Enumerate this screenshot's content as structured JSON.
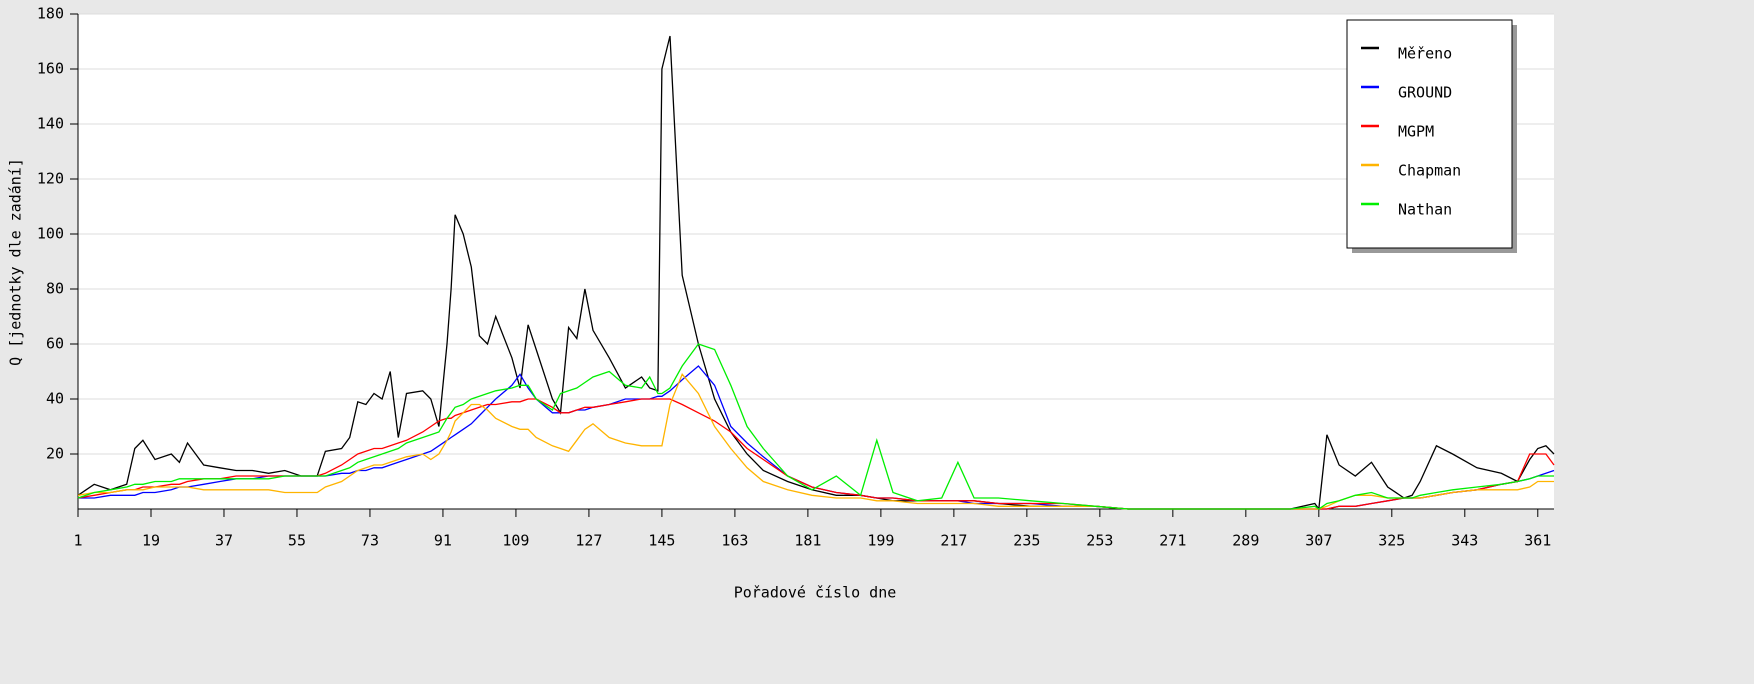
{
  "chart_data": {
    "type": "line",
    "x_label": "Pořadové číslo dne",
    "y_label": "Q [jednotky dle zadání]",
    "xlim": [
      1,
      365
    ],
    "xticks": [
      1,
      19,
      37,
      55,
      73,
      91,
      109,
      127,
      145,
      163,
      181,
      199,
      217,
      235,
      253,
      271,
      289,
      307,
      325,
      343,
      361
    ],
    "ylim": [
      0,
      180
    ],
    "yticks": [
      20,
      40,
      60,
      80,
      100,
      120,
      140,
      160,
      180
    ],
    "grid": true,
    "legend": "upper right",
    "x": [
      1,
      5,
      9,
      13,
      15,
      17,
      20,
      24,
      26,
      28,
      32,
      36,
      40,
      44,
      48,
      52,
      56,
      60,
      62,
      66,
      68,
      70,
      72,
      74,
      76,
      78,
      80,
      82,
      86,
      88,
      90,
      92,
      93,
      94,
      96,
      98,
      100,
      102,
      104,
      108,
      110,
      112,
      114,
      118,
      120,
      122,
      124,
      126,
      128,
      132,
      136,
      140,
      142,
      144,
      145,
      147,
      150,
      154,
      158,
      162,
      166,
      170,
      176,
      182,
      188,
      194,
      198,
      202,
      208,
      214,
      218,
      222,
      228,
      236,
      244,
      252,
      260,
      266,
      272,
      280,
      290,
      300,
      306,
      307,
      309,
      312,
      316,
      320,
      324,
      328,
      330,
      332,
      336,
      340,
      346,
      352,
      356,
      359,
      361,
      363,
      365
    ],
    "series": [
      {
        "name": "Měřeno",
        "color": "#000000",
        "values": [
          5,
          9,
          7,
          9,
          22,
          25,
          18,
          20,
          17,
          24,
          16,
          15,
          14,
          14,
          13,
          14,
          12,
          12,
          21,
          22,
          26,
          39,
          38,
          42,
          40,
          50,
          26,
          42,
          43,
          40,
          30,
          60,
          80,
          107,
          100,
          88,
          63,
          60,
          70,
          55,
          44,
          67,
          58,
          40,
          35,
          66,
          62,
          80,
          65,
          55,
          44,
          48,
          44,
          43,
          160,
          172,
          85,
          60,
          40,
          28,
          20,
          14,
          10,
          7,
          5,
          5,
          4,
          3,
          3,
          3,
          3,
          3,
          2,
          1,
          1,
          1,
          0,
          0,
          0,
          0,
          0,
          0,
          2,
          0,
          27,
          16,
          12,
          17,
          8,
          4,
          5,
          10,
          23,
          20,
          15,
          13,
          10,
          18,
          22,
          23,
          20
        ]
      },
      {
        "name": "GROUND",
        "color": "#0000ff",
        "values": [
          4,
          4,
          5,
          5,
          5,
          6,
          6,
          7,
          8,
          8,
          9,
          10,
          11,
          11,
          12,
          12,
          12,
          12,
          12,
          13,
          13,
          14,
          14,
          15,
          15,
          16,
          17,
          18,
          20,
          21,
          23,
          25,
          26,
          27,
          29,
          31,
          34,
          37,
          40,
          45,
          49,
          44,
          40,
          35,
          35,
          35,
          36,
          36,
          37,
          38,
          40,
          40,
          40,
          41,
          41,
          43,
          47,
          52,
          45,
          30,
          24,
          19,
          12,
          8,
          6,
          5,
          4,
          4,
          3,
          3,
          3,
          2,
          2,
          2,
          1,
          1,
          0,
          0,
          0,
          0,
          0,
          0,
          0,
          0,
          0,
          1,
          1,
          2,
          3,
          4,
          4,
          4,
          5,
          6,
          7,
          9,
          10,
          11,
          12,
          13,
          14
        ]
      },
      {
        "name": "MGPM",
        "color": "#ff0000",
        "values": [
          4,
          5,
          6,
          7,
          7,
          8,
          8,
          9,
          9,
          10,
          11,
          11,
          12,
          12,
          12,
          12,
          12,
          12,
          13,
          16,
          18,
          20,
          21,
          22,
          22,
          23,
          24,
          25,
          28,
          30,
          32,
          33,
          33,
          34,
          35,
          36,
          37,
          38,
          38,
          39,
          39,
          40,
          40,
          37,
          35,
          35,
          36,
          37,
          37,
          38,
          39,
          40,
          40,
          40,
          40,
          40,
          38,
          35,
          32,
          28,
          22,
          18,
          12,
          8,
          6,
          5,
          4,
          4,
          3,
          3,
          3,
          3,
          2,
          2,
          2,
          1,
          0,
          0,
          0,
          0,
          0,
          0,
          0,
          0,
          0,
          1,
          1,
          2,
          3,
          4,
          4,
          4,
          5,
          6,
          7,
          9,
          10,
          20,
          20,
          20,
          16
        ]
      },
      {
        "name": "Chapman",
        "color": "#ffb400",
        "values": [
          5,
          6,
          6,
          7,
          7,
          7,
          8,
          8,
          8,
          8,
          7,
          7,
          7,
          7,
          7,
          6,
          6,
          6,
          8,
          10,
          12,
          14,
          15,
          16,
          16,
          17,
          18,
          19,
          20,
          18,
          20,
          25,
          28,
          32,
          35,
          38,
          38,
          36,
          33,
          30,
          29,
          29,
          26,
          23,
          22,
          21,
          25,
          29,
          31,
          26,
          24,
          23,
          23,
          23,
          23,
          38,
          49,
          42,
          30,
          22,
          15,
          10,
          7,
          5,
          4,
          4,
          3,
          3,
          2,
          2,
          2,
          2,
          1,
          1,
          1,
          1,
          0,
          0,
          0,
          0,
          0,
          0,
          0,
          0,
          1,
          3,
          5,
          5,
          4,
          4,
          4,
          4,
          5,
          6,
          7,
          7,
          7,
          8,
          10,
          10,
          10
        ]
      },
      {
        "name": "Nathan",
        "color": "#00ee00",
        "values": [
          4,
          6,
          7,
          8,
          9,
          9,
          10,
          10,
          11,
          11,
          11,
          11,
          11,
          11,
          11,
          12,
          12,
          12,
          12,
          14,
          15,
          17,
          18,
          19,
          20,
          21,
          22,
          24,
          26,
          27,
          28,
          33,
          35,
          37,
          38,
          40,
          41,
          42,
          43,
          44,
          45,
          45,
          40,
          36,
          42,
          43,
          44,
          46,
          48,
          50,
          45,
          44,
          48,
          42,
          42,
          44,
          52,
          60,
          58,
          45,
          30,
          22,
          12,
          7,
          12,
          5,
          25,
          6,
          3,
          4,
          17,
          4,
          4,
          3,
          2,
          1,
          0,
          0,
          0,
          0,
          0,
          0,
          1,
          0,
          2,
          3,
          5,
          6,
          4,
          4,
          4,
          5,
          6,
          7,
          8,
          9,
          10,
          11,
          12,
          12,
          12
        ]
      }
    ]
  }
}
